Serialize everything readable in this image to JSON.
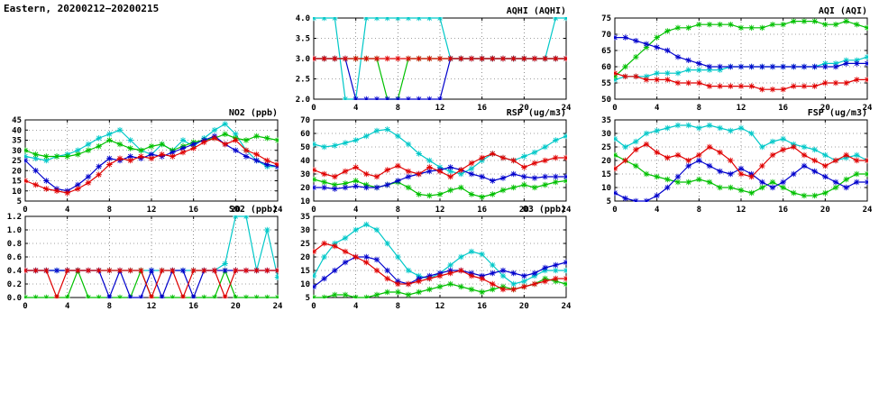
{
  "page": {
    "title": "Eastern, 20200212−20200215"
  },
  "colors": {
    "red": "#e00000",
    "green": "#00c000",
    "blue": "#0000cc",
    "cyan": "#00c8c8",
    "grid": "#444444",
    "axis": "#000000"
  },
  "chart_data": [
    {
      "id": "aqhi",
      "type": "line",
      "title": "AQHI (AQHI)",
      "xlim": [
        0,
        24
      ],
      "ylim": [
        2,
        4
      ],
      "x_ticks": {
        "values": [
          0,
          4,
          8,
          12,
          16,
          20,
          24
        ],
        "labels": [
          "0",
          "4",
          "8",
          "12",
          "16",
          "20",
          "24"
        ]
      },
      "y_ticks": {
        "values": [
          2,
          2.5,
          3,
          3.5,
          4
        ],
        "labels": [
          "2.0",
          "2.5",
          "3.0",
          "3.5",
          "4.0"
        ]
      },
      "series": [
        {
          "name": "cyan",
          "color": "#00c8c8",
          "values": [
            4,
            4,
            4,
            2,
            2,
            4,
            4,
            4,
            4,
            4,
            4,
            4,
            4,
            3,
            3,
            3,
            3,
            3,
            3,
            3,
            3,
            3,
            3,
            4,
            4
          ]
        },
        {
          "name": "green",
          "color": "#00c000",
          "values": [
            3,
            3,
            3,
            3,
            3,
            3,
            3,
            2,
            2,
            3,
            3,
            3,
            3,
            3,
            3,
            3,
            3,
            3,
            3,
            3,
            3,
            3,
            3,
            3,
            3
          ]
        },
        {
          "name": "blue",
          "color": "#0000cc",
          "values": [
            3,
            3,
            3,
            3,
            2,
            2,
            2,
            2,
            2,
            2,
            2,
            2,
            2,
            3,
            3,
            3,
            3,
            3,
            3,
            3,
            3,
            3,
            3,
            3,
            3
          ]
        },
        {
          "name": "red",
          "color": "#e00000",
          "values": [
            3,
            3,
            3,
            3,
            3,
            3,
            3,
            3,
            3,
            3,
            3,
            3,
            3,
            3,
            3,
            3,
            3,
            3,
            3,
            3,
            3,
            3,
            3,
            3,
            3
          ]
        }
      ]
    },
    {
      "id": "aqi",
      "type": "line",
      "title": "AQI (AQI)",
      "xlim": [
        0,
        24
      ],
      "ylim": [
        50,
        75
      ],
      "x_ticks": {
        "values": [
          0,
          4,
          8,
          12,
          16,
          20,
          24
        ],
        "labels": [
          "0",
          "4",
          "8",
          "12",
          "16",
          "20",
          "24"
        ]
      },
      "y_ticks": {
        "values": [
          50,
          55,
          60,
          65,
          70,
          75
        ],
        "labels": [
          "50",
          "55",
          "60",
          "65",
          "70",
          "75"
        ]
      },
      "series": [
        {
          "name": "cyan",
          "color": "#00c8c8",
          "values": [
            56,
            57,
            57,
            57,
            58,
            58,
            58,
            59,
            59,
            59,
            59,
            60,
            60,
            60,
            60,
            60,
            60,
            60,
            60,
            60,
            61,
            61,
            62,
            62,
            63
          ]
        },
        {
          "name": "green",
          "color": "#00c000",
          "values": [
            57,
            60,
            63,
            66,
            69,
            71,
            72,
            72,
            73,
            73,
            73,
            73,
            72,
            72,
            72,
            73,
            73,
            74,
            74,
            74,
            73,
            73,
            74,
            73,
            72
          ]
        },
        {
          "name": "blue",
          "color": "#0000cc",
          "values": [
            69,
            69,
            68,
            67,
            66,
            65,
            63,
            62,
            61,
            60,
            60,
            60,
            60,
            60,
            60,
            60,
            60,
            60,
            60,
            60,
            60,
            60,
            61,
            61,
            61
          ]
        },
        {
          "name": "red",
          "color": "#e00000",
          "values": [
            58,
            57,
            57,
            56,
            56,
            56,
            55,
            55,
            55,
            54,
            54,
            54,
            54,
            54,
            53,
            53,
            53,
            54,
            54,
            54,
            55,
            55,
            55,
            56,
            56
          ]
        }
      ]
    },
    {
      "id": "no2",
      "type": "line",
      "title": "NO2 (ppb)",
      "xlim": [
        0,
        24
      ],
      "ylim": [
        5,
        45
      ],
      "x_ticks": {
        "values": [
          0,
          4,
          8,
          12,
          16,
          20,
          24
        ],
        "labels": [
          "0",
          "4",
          "8",
          "12",
          "16",
          "20",
          "24"
        ]
      },
      "y_ticks": {
        "values": [
          5,
          10,
          15,
          20,
          25,
          30,
          35,
          40,
          45
        ],
        "labels": [
          "5",
          "10",
          "15",
          "20",
          "25",
          "30",
          "35",
          "40",
          "45"
        ]
      },
      "series": [
        {
          "name": "cyan",
          "color": "#00c8c8",
          "values": [
            27,
            26,
            25,
            27,
            28,
            30,
            33,
            36,
            38,
            40,
            35,
            30,
            28,
            33,
            30,
            35,
            32,
            36,
            40,
            43,
            38,
            30,
            25,
            22,
            22
          ]
        },
        {
          "name": "green",
          "color": "#00c000",
          "values": [
            30,
            28,
            27,
            27,
            27,
            28,
            30,
            32,
            35,
            33,
            31,
            30,
            32,
            33,
            30,
            32,
            34,
            35,
            36,
            38,
            36,
            35,
            37,
            36,
            35
          ]
        },
        {
          "name": "blue",
          "color": "#0000cc",
          "values": [
            25,
            20,
            15,
            11,
            10,
            13,
            17,
            22,
            26,
            25,
            27,
            26,
            28,
            27,
            29,
            31,
            33,
            35,
            37,
            33,
            30,
            27,
            25,
            23,
            22
          ]
        },
        {
          "name": "red",
          "color": "#e00000",
          "values": [
            15,
            13,
            11,
            10,
            9,
            11,
            14,
            18,
            23,
            26,
            25,
            27,
            26,
            28,
            27,
            29,
            31,
            34,
            36,
            33,
            35,
            30,
            28,
            25,
            23
          ]
        }
      ]
    },
    {
      "id": "rsp",
      "type": "line",
      "title": "RSP (ug/m3)",
      "xlim": [
        0,
        24
      ],
      "ylim": [
        10,
        70
      ],
      "x_ticks": {
        "values": [
          0,
          4,
          8,
          12,
          16,
          20,
          24
        ],
        "labels": [
          "0",
          "4",
          "8",
          "12",
          "16",
          "20",
          "24"
        ]
      },
      "y_ticks": {
        "values": [
          10,
          20,
          30,
          40,
          50,
          60,
          70
        ],
        "labels": [
          "10",
          "20",
          "30",
          "40",
          "50",
          "60",
          "70"
        ]
      },
      "series": [
        {
          "name": "cyan",
          "color": "#00c8c8",
          "values": [
            52,
            50,
            51,
            53,
            55,
            58,
            62,
            63,
            58,
            52,
            45,
            40,
            35,
            32,
            30,
            34,
            40,
            45,
            42,
            40,
            43,
            46,
            50,
            55,
            58
          ]
        },
        {
          "name": "green",
          "color": "#00c000",
          "values": [
            26,
            24,
            22,
            23,
            25,
            22,
            20,
            22,
            24,
            20,
            15,
            14,
            15,
            18,
            20,
            15,
            13,
            15,
            18,
            20,
            22,
            20,
            22,
            24,
            25
          ]
        },
        {
          "name": "blue",
          "color": "#0000cc",
          "values": [
            20,
            20,
            19,
            20,
            21,
            20,
            20,
            22,
            25,
            28,
            30,
            32,
            33,
            35,
            33,
            30,
            28,
            25,
            27,
            30,
            28,
            27,
            28,
            28,
            28
          ]
        },
        {
          "name": "red",
          "color": "#e00000",
          "values": [
            33,
            30,
            28,
            32,
            35,
            30,
            28,
            33,
            36,
            32,
            30,
            35,
            32,
            28,
            33,
            38,
            42,
            45,
            42,
            40,
            35,
            38,
            40,
            42,
            42
          ]
        }
      ]
    },
    {
      "id": "fsp",
      "type": "line",
      "title": "FSP (ug/m3)",
      "xlim": [
        0,
        24
      ],
      "ylim": [
        5,
        35
      ],
      "x_ticks": {
        "values": [
          0,
          4,
          8,
          12,
          16,
          20,
          24
        ],
        "labels": [
          "0",
          "4",
          "8",
          "12",
          "16",
          "20",
          "24"
        ]
      },
      "y_ticks": {
        "values": [
          5,
          10,
          15,
          20,
          25,
          30,
          35
        ],
        "labels": [
          "5",
          "10",
          "15",
          "20",
          "25",
          "30",
          "35"
        ]
      },
      "series": [
        {
          "name": "cyan",
          "color": "#00c8c8",
          "values": [
            28,
            25,
            27,
            30,
            31,
            32,
            33,
            33,
            32,
            33,
            32,
            31,
            32,
            30,
            25,
            27,
            28,
            26,
            25,
            24,
            22,
            20,
            21,
            22,
            20
          ]
        },
        {
          "name": "green",
          "color": "#00c000",
          "values": [
            22,
            20,
            18,
            15,
            14,
            13,
            12,
            12,
            13,
            12,
            10,
            10,
            9,
            8,
            10,
            12,
            10,
            8,
            7,
            7,
            8,
            10,
            13,
            15,
            15
          ]
        },
        {
          "name": "blue",
          "color": "#0000cc",
          "values": [
            8,
            6,
            5,
            5,
            7,
            10,
            14,
            18,
            20,
            18,
            16,
            15,
            17,
            15,
            12,
            10,
            12,
            15,
            18,
            16,
            14,
            12,
            10,
            12,
            12
          ]
        },
        {
          "name": "red",
          "color": "#e00000",
          "values": [
            17,
            20,
            24,
            26,
            23,
            21,
            22,
            20,
            22,
            25,
            23,
            20,
            15,
            14,
            18,
            22,
            24,
            25,
            22,
            20,
            18,
            20,
            22,
            20,
            20
          ]
        }
      ]
    },
    {
      "id": "so2",
      "type": "line",
      "title": "SO2 (ppb)",
      "xlim": [
        0,
        24
      ],
      "ylim": [
        0,
        1.2
      ],
      "x_ticks": {
        "values": [
          0,
          4,
          8,
          12,
          16,
          20,
          24
        ],
        "labels": [
          "0",
          "4",
          "8",
          "12",
          "16",
          "20",
          "24"
        ]
      },
      "y_ticks": {
        "values": [
          0,
          0.2,
          0.4,
          0.6,
          0.8,
          1.0,
          1.2
        ],
        "labels": [
          "0.0",
          "0.2",
          "0.4",
          "0.6",
          "0.8",
          "1.0",
          "1.2"
        ]
      },
      "series": [
        {
          "name": "cyan",
          "color": "#00c8c8",
          "values": [
            0.4,
            0.4,
            0.4,
            0.4,
            0.4,
            0.4,
            0.4,
            0.4,
            0.4,
            0.4,
            0.4,
            0.4,
            0.4,
            0.4,
            0.4,
            0.4,
            0.4,
            0.4,
            0.4,
            0.5,
            1.2,
            1.2,
            0.4,
            1.0,
            0.3
          ]
        },
        {
          "name": "green",
          "color": "#00c000",
          "values": [
            0,
            0,
            0,
            0,
            0,
            0.4,
            0,
            0,
            0,
            0,
            0,
            0.4,
            0,
            0,
            0,
            0,
            0,
            0,
            0,
            0.4,
            0,
            0,
            0,
            0,
            0
          ]
        },
        {
          "name": "blue",
          "color": "#0000cc",
          "values": [
            0.4,
            0.4,
            0.4,
            0.4,
            0.4,
            0.4,
            0.4,
            0.4,
            0,
            0.4,
            0,
            0,
            0.4,
            0,
            0.4,
            0.4,
            0,
            0.4,
            0.4,
            0.4,
            0.4,
            0.4,
            0.4,
            0.4,
            0.4
          ]
        },
        {
          "name": "red",
          "color": "#e00000",
          "values": [
            0.4,
            0.4,
            0.4,
            0,
            0.4,
            0.4,
            0.4,
            0.4,
            0.4,
            0.4,
            0.4,
            0.4,
            0,
            0.4,
            0.4,
            0,
            0.4,
            0.4,
            0.4,
            0,
            0.4,
            0.4,
            0.4,
            0.4,
            0.4
          ]
        }
      ]
    },
    {
      "id": "o3",
      "type": "line",
      "title": "O3 (ppb)",
      "xlim": [
        0,
        24
      ],
      "ylim": [
        5,
        35
      ],
      "x_ticks": {
        "values": [
          0,
          4,
          8,
          12,
          16,
          20,
          24
        ],
        "labels": [
          "0",
          "4",
          "8",
          "12",
          "16",
          "20",
          "24"
        ]
      },
      "y_ticks": {
        "values": [
          5,
          10,
          15,
          20,
          25,
          30,
          35
        ],
        "labels": [
          "5",
          "10",
          "15",
          "20",
          "25",
          "30",
          "35"
        ]
      },
      "series": [
        {
          "name": "cyan",
          "color": "#00c8c8",
          "values": [
            13,
            20,
            25,
            27,
            30,
            32,
            30,
            25,
            20,
            15,
            13,
            12,
            14,
            17,
            20,
            22,
            21,
            17,
            13,
            10,
            11,
            13,
            15,
            15,
            15
          ]
        },
        {
          "name": "green",
          "color": "#00c000",
          "values": [
            5,
            5,
            6,
            6,
            5,
            5,
            6,
            7,
            7,
            6,
            7,
            8,
            9,
            10,
            9,
            8,
            7,
            8,
            9,
            8,
            9,
            10,
            12,
            11,
            10
          ]
        },
        {
          "name": "blue",
          "color": "#0000cc",
          "values": [
            9,
            12,
            15,
            18,
            20,
            20,
            19,
            15,
            11,
            10,
            12,
            13,
            14,
            15,
            15,
            14,
            13,
            14,
            15,
            14,
            13,
            14,
            16,
            17,
            18
          ]
        },
        {
          "name": "red",
          "color": "#e00000",
          "values": [
            22,
            25,
            24,
            22,
            20,
            18,
            15,
            12,
            10,
            10,
            11,
            12,
            13,
            14,
            15,
            13,
            12,
            10,
            8,
            8,
            9,
            10,
            11,
            12,
            12
          ]
        }
      ]
    }
  ]
}
